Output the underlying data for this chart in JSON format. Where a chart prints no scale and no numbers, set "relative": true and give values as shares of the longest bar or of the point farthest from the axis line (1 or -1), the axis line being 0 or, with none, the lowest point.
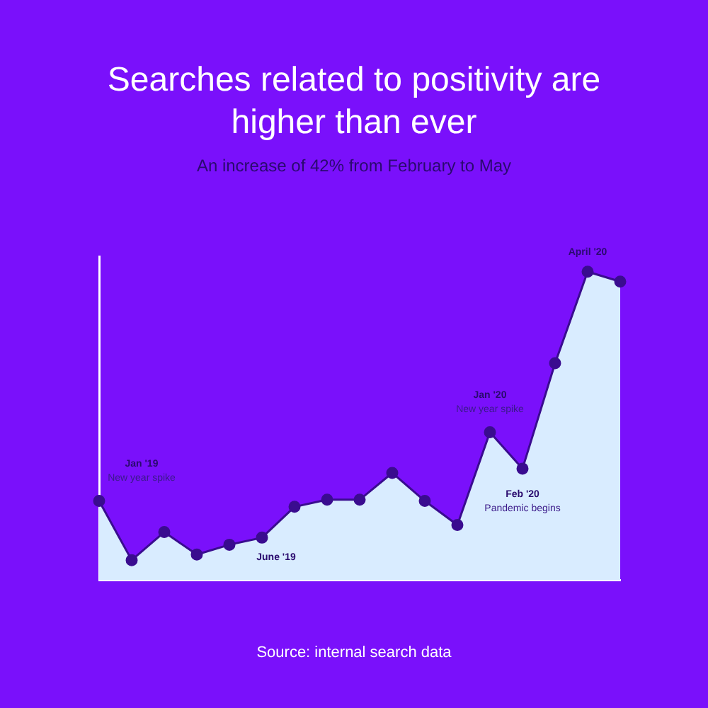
{
  "chart_data": {
    "type": "area",
    "title": "Searches related to positivity are higher than ever",
    "subtitle": "An increase of 42% from February to May",
    "categories": [
      null,
      null,
      null,
      null,
      null,
      null,
      null,
      null,
      null,
      null,
      null,
      null,
      null,
      null,
      null,
      null,
      null
    ],
    "relative": true,
    "series": [
      {
        "color": "#3a0c8f",
        "values": [
          0.256,
          0.064,
          0.155,
          0.082,
          0.114,
          0.137,
          0.237,
          0.26,
          0.26,
          0.347,
          0.256,
          0.178,
          0.479,
          0.361,
          0.703,
          1,
          0.968
        ]
      }
    ],
    "marker": "circle",
    "grid": false,
    "legend": false,
    "annotations": [
      "Jan '19",
      "New year spike",
      "June '19",
      "Jan '20",
      "New year spike",
      "Feb '20",
      "Pandemic begins",
      "April '20",
      "Source: internal search data"
    ]
  }
}
